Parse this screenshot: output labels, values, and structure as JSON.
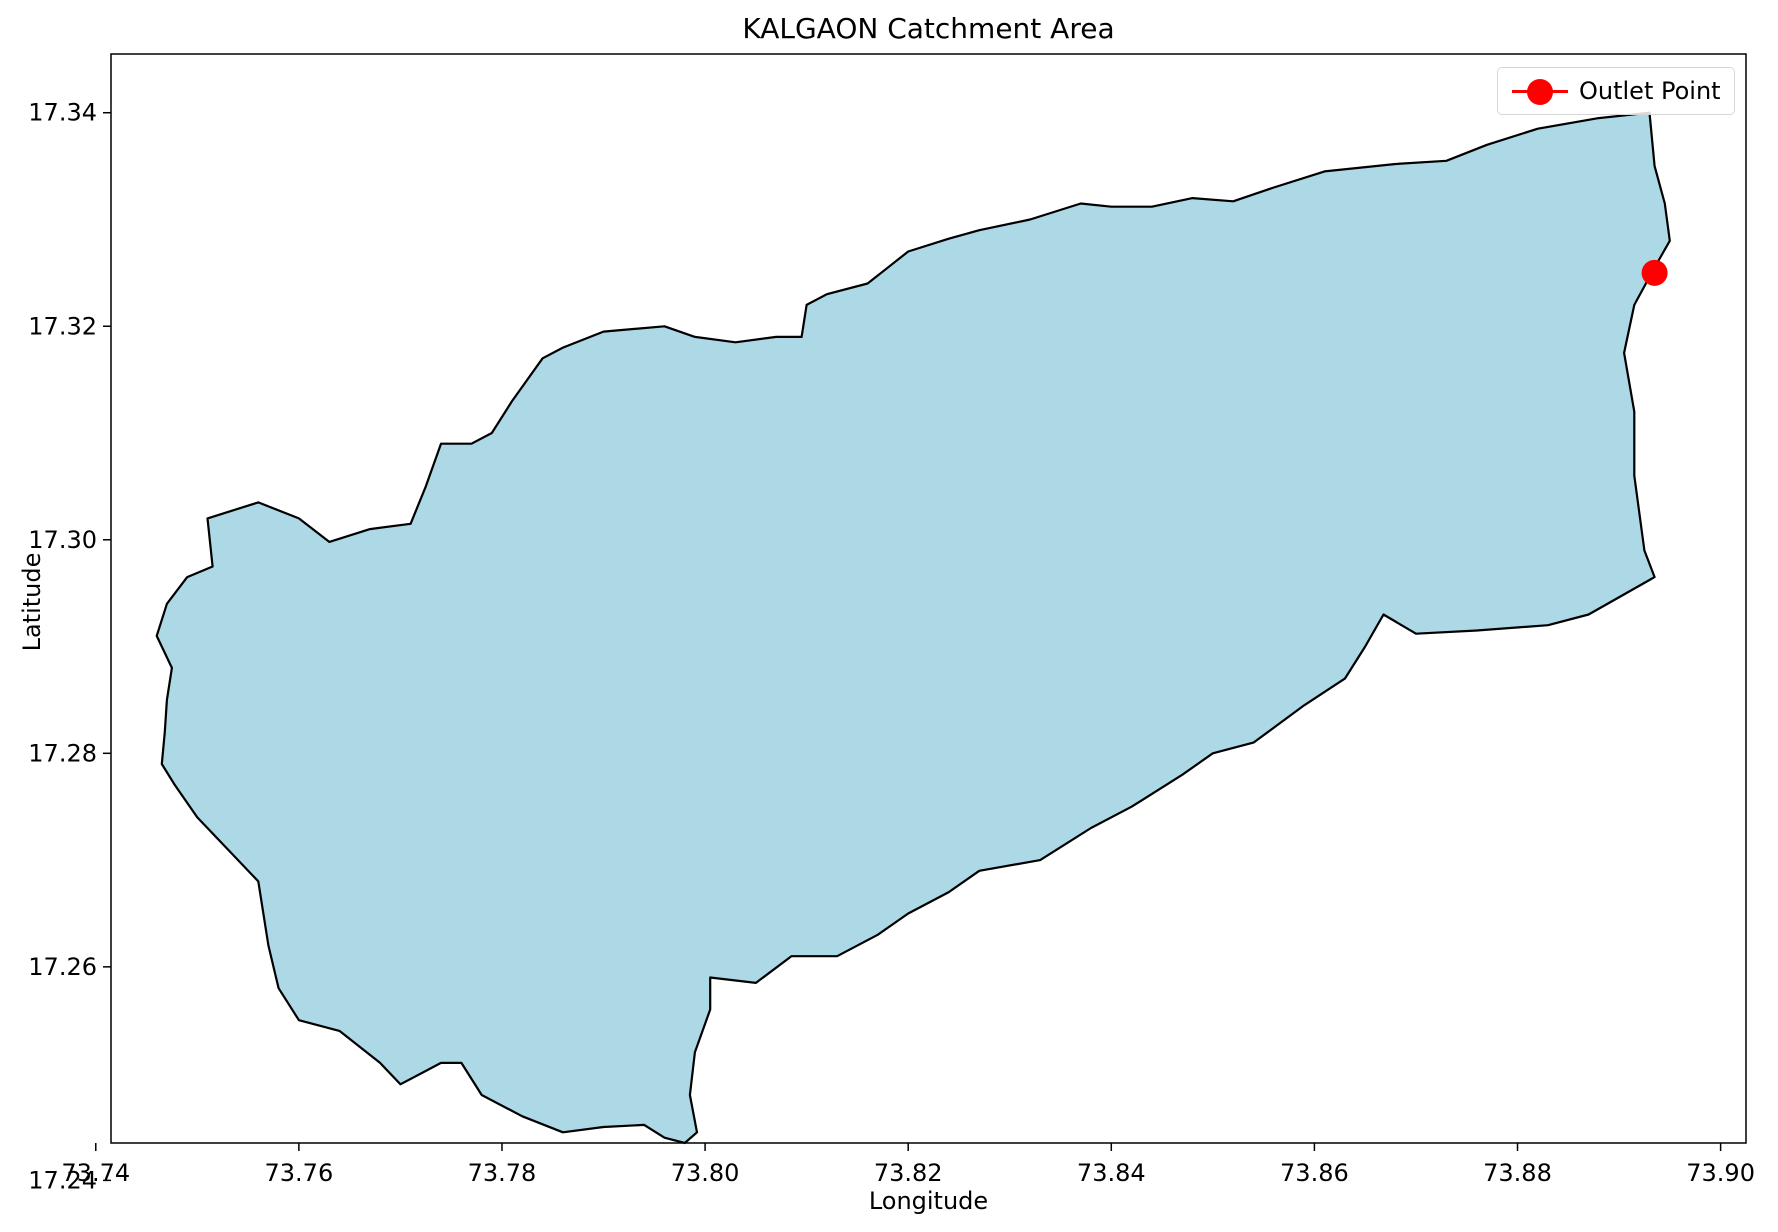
{
  "chart_data": {
    "type": "map",
    "title": "KALGAON Catchment Area",
    "xlabel": "Longitude",
    "ylabel": "Latitude",
    "xlim": [
      73.7415,
      73.9025
    ],
    "ylim": [
      17.2435,
      17.3455
    ],
    "xticks": [
      73.74,
      73.76,
      73.78,
      73.8,
      73.82,
      73.84,
      73.86,
      73.88,
      73.9
    ],
    "xtick_labels": [
      "73.74",
      "73.76",
      "73.78",
      "73.80",
      "73.82",
      "73.84",
      "73.86",
      "73.88",
      "73.90"
    ],
    "yticks": [
      17.24,
      17.26,
      17.28,
      17.3,
      17.32,
      17.34
    ],
    "ytick_labels": [
      "17.24",
      "17.26",
      "17.28",
      "17.30",
      "17.32",
      "17.34"
    ],
    "grid": false,
    "legend_position": "top-right",
    "catchment": {
      "fill": "#add8e6",
      "edge": "#000000",
      "boundary": [
        [
          73.7465,
          17.279
        ],
        [
          73.7478,
          17.277
        ],
        [
          73.75,
          17.274
        ],
        [
          73.753,
          17.271
        ],
        [
          73.756,
          17.268
        ],
        [
          73.757,
          17.262
        ],
        [
          73.758,
          17.258
        ],
        [
          73.76,
          17.255
        ],
        [
          73.764,
          17.254
        ],
        [
          73.768,
          17.251
        ],
        [
          73.77,
          17.249
        ],
        [
          73.772,
          17.25
        ],
        [
          73.774,
          17.251
        ],
        [
          73.776,
          17.251
        ],
        [
          73.778,
          17.248
        ],
        [
          73.782,
          17.246
        ],
        [
          73.786,
          17.2445
        ],
        [
          73.79,
          17.245
        ],
        [
          73.794,
          17.2452
        ],
        [
          73.796,
          17.244
        ],
        [
          73.798,
          17.2435
        ],
        [
          73.7992,
          17.2445
        ],
        [
          73.7985,
          17.248
        ],
        [
          73.799,
          17.252
        ],
        [
          73.8005,
          17.256
        ],
        [
          73.8005,
          17.259
        ],
        [
          73.805,
          17.2585
        ],
        [
          73.8085,
          17.261
        ],
        [
          73.813,
          17.261
        ],
        [
          73.817,
          17.263
        ],
        [
          73.82,
          17.265
        ],
        [
          73.824,
          17.267
        ],
        [
          73.827,
          17.269
        ],
        [
          73.833,
          17.27
        ],
        [
          73.838,
          17.273
        ],
        [
          73.842,
          17.275
        ],
        [
          73.847,
          17.278
        ],
        [
          73.85,
          17.28
        ],
        [
          73.854,
          17.281
        ],
        [
          73.859,
          17.2845
        ],
        [
          73.863,
          17.287
        ],
        [
          73.865,
          17.29
        ],
        [
          73.8668,
          17.293
        ],
        [
          73.87,
          17.2912
        ],
        [
          73.876,
          17.2915
        ],
        [
          73.883,
          17.292
        ],
        [
          73.887,
          17.293
        ],
        [
          73.8935,
          17.2965
        ],
        [
          73.8925,
          17.299
        ],
        [
          73.8915,
          17.306
        ],
        [
          73.8915,
          17.312
        ],
        [
          73.8905,
          17.3175
        ],
        [
          73.8915,
          17.322
        ],
        [
          73.8935,
          17.3255
        ],
        [
          73.895,
          17.328
        ],
        [
          73.8945,
          17.3315
        ],
        [
          73.8935,
          17.335
        ],
        [
          73.893,
          17.34
        ],
        [
          73.888,
          17.3395
        ],
        [
          73.882,
          17.3385
        ],
        [
          73.877,
          17.337
        ],
        [
          73.873,
          17.3355
        ],
        [
          73.868,
          17.3352
        ],
        [
          73.861,
          17.3345
        ],
        [
          73.856,
          17.333
        ],
        [
          73.852,
          17.3317
        ],
        [
          73.848,
          17.332
        ],
        [
          73.844,
          17.3312
        ],
        [
          73.84,
          17.3312
        ],
        [
          73.837,
          17.3315
        ],
        [
          73.832,
          17.33
        ],
        [
          73.827,
          17.329
        ],
        [
          73.824,
          17.3282
        ],
        [
          73.82,
          17.327
        ],
        [
          73.816,
          17.324
        ],
        [
          73.812,
          17.323
        ],
        [
          73.81,
          17.322
        ],
        [
          73.8095,
          17.319
        ],
        [
          73.807,
          17.319
        ],
        [
          73.803,
          17.3185
        ],
        [
          73.799,
          17.319
        ],
        [
          73.796,
          17.32
        ],
        [
          73.79,
          17.3195
        ],
        [
          73.786,
          17.318
        ],
        [
          73.784,
          17.317
        ],
        [
          73.781,
          17.313
        ],
        [
          73.779,
          17.31
        ],
        [
          73.777,
          17.309
        ],
        [
          73.774,
          17.309
        ],
        [
          73.7725,
          17.305
        ],
        [
          73.771,
          17.3015
        ],
        [
          73.767,
          17.301
        ],
        [
          73.763,
          17.2998
        ],
        [
          73.76,
          17.302
        ],
        [
          73.756,
          17.3035
        ],
        [
          73.751,
          17.302
        ],
        [
          73.7515,
          17.2975
        ],
        [
          73.749,
          17.2965
        ],
        [
          73.747,
          17.294
        ],
        [
          73.746,
          17.291
        ],
        [
          73.7475,
          17.288
        ],
        [
          73.747,
          17.285
        ],
        [
          73.7468,
          17.282
        ]
      ]
    },
    "series": [
      {
        "name": "Outlet Point",
        "type": "point",
        "x": 73.8935,
        "y": 17.325,
        "color": "#ff0000"
      }
    ]
  }
}
